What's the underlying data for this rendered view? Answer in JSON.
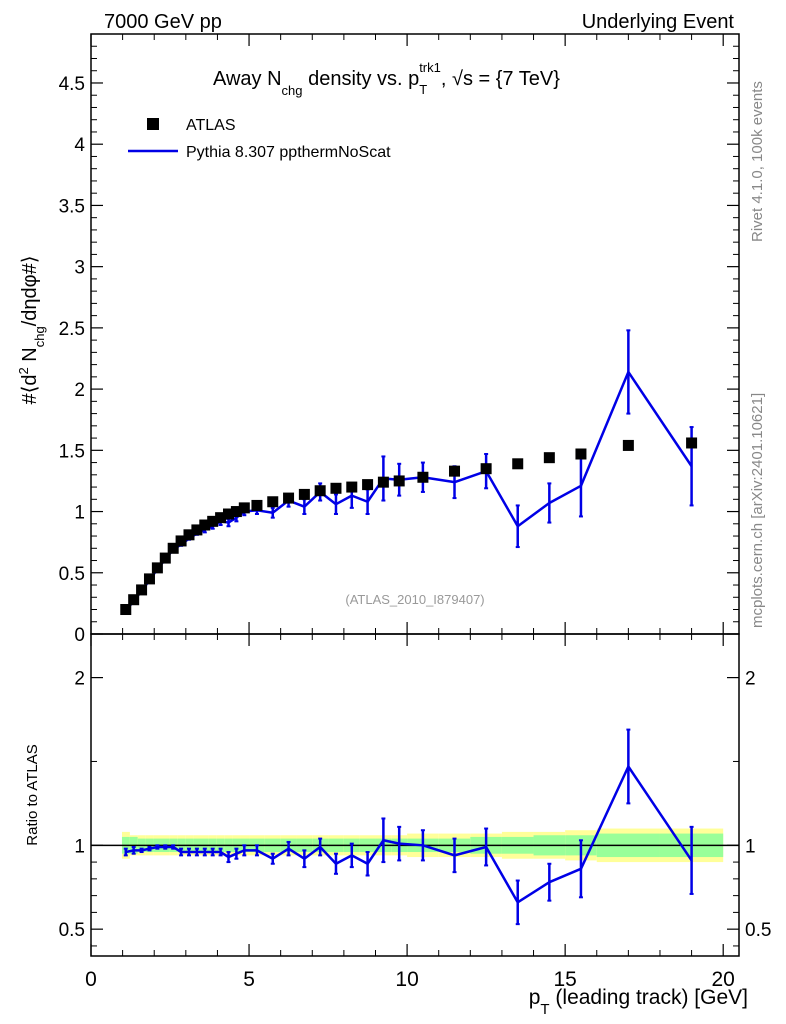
{
  "header": {
    "left": "7000 GeV pp",
    "right": "Underlying Event"
  },
  "side_labels": {
    "top": "Rivet 4.1.0,  100k events",
    "bottom": "mcplots.cern.ch [arXiv:2401.10621]"
  },
  "watermark": "(ATLAS_2010_I879407)",
  "colors": {
    "data": "#000000",
    "mc": "#0000e6",
    "band_inner": "#99ff99",
    "band_outer": "#ffff99"
  },
  "chart_data": {
    "type": "line",
    "title": "Away N_chg density vs. p_T^trk1, √s = {7 TeV}",
    "title_parts": {
      "a": "Away N",
      "a_sub": "chg",
      "b": " density vs. p",
      "b_sub": "T",
      "b_sup": "trk1",
      "c": ", √s = {7 TeV}"
    },
    "xlabel": "p_T (leading track) [GeV]",
    "xlabel_parts": {
      "main": "p",
      "sub": "T",
      "rest": " (leading track) [GeV]"
    },
    "ylabel": "#⟨d² N_chg/dηdφ#⟩",
    "ylabel_parts": {
      "a": "#⟨d",
      "sup": "2",
      "b": " N",
      "sub": "chg",
      "c": "/dηdφ#⟩"
    },
    "ratio_ylabel": "Ratio to ATLAS",
    "xlim": [
      0,
      20.5
    ],
    "ylim": [
      0,
      4.9
    ],
    "ratio_ylim": [
      0.34,
      2.26
    ],
    "xticks": [
      0,
      5,
      10,
      15,
      20
    ],
    "xtick_labels": [
      "0",
      "5",
      "10",
      "15",
      "20"
    ],
    "yticks": [
      0,
      0.5,
      1,
      1.5,
      2,
      2.5,
      3,
      3.5,
      4,
      4.5
    ],
    "ytick_labels": [
      "0",
      "0.5",
      "1",
      "1.5",
      "2",
      "2.5",
      "3",
      "3.5",
      "4",
      "4.5"
    ],
    "ratio_yticks": [
      0.5,
      1,
      2
    ],
    "ratio_ytick_labels": [
      "0.5",
      "1",
      "2"
    ],
    "legend": [
      {
        "label": "ATLAS",
        "style": "marker"
      },
      {
        "label": "Pythia 8.307 ppthermNoScat",
        "style": "line"
      }
    ],
    "series": [
      {
        "name": "ATLAS",
        "x": [
          1.1,
          1.35,
          1.6,
          1.85,
          2.1,
          2.35,
          2.6,
          2.85,
          3.1,
          3.35,
          3.6,
          3.85,
          4.1,
          4.35,
          4.6,
          4.85,
          5.25,
          5.75,
          6.25,
          6.75,
          7.25,
          7.75,
          8.25,
          8.75,
          9.25,
          9.75,
          10.5,
          11.5,
          12.5,
          13.5,
          14.5,
          15.5,
          17.0,
          19.0
        ],
        "y": [
          0.2,
          0.28,
          0.36,
          0.45,
          0.54,
          0.62,
          0.7,
          0.76,
          0.81,
          0.85,
          0.89,
          0.92,
          0.95,
          0.98,
          1.0,
          1.03,
          1.05,
          1.08,
          1.11,
          1.14,
          1.17,
          1.19,
          1.2,
          1.22,
          1.24,
          1.25,
          1.28,
          1.33,
          1.35,
          1.39,
          1.44,
          1.47,
          1.54,
          1.56
        ]
      },
      {
        "name": "Pythia 8.307 ppthermNoScat",
        "x": [
          1.1,
          1.35,
          1.6,
          1.85,
          2.1,
          2.35,
          2.6,
          2.85,
          3.1,
          3.35,
          3.6,
          3.85,
          4.1,
          4.35,
          4.6,
          4.85,
          5.25,
          5.75,
          6.25,
          6.75,
          7.25,
          7.75,
          8.25,
          8.75,
          9.25,
          9.75,
          10.5,
          11.5,
          12.5,
          13.5,
          14.5,
          15.5,
          17.0,
          19.0
        ],
        "y": [
          0.19,
          0.27,
          0.35,
          0.44,
          0.53,
          0.61,
          0.69,
          0.73,
          0.78,
          0.82,
          0.85,
          0.88,
          0.92,
          0.91,
          0.95,
          1.0,
          1.01,
          0.99,
          1.09,
          1.04,
          1.16,
          1.06,
          1.13,
          1.08,
          1.27,
          1.26,
          1.28,
          1.24,
          1.33,
          0.88,
          1.07,
          1.21,
          2.14,
          1.37
        ],
        "err": [
          0.01,
          0.01,
          0.01,
          0.01,
          0.01,
          0.01,
          0.01,
          0.01,
          0.01,
          0.01,
          0.02,
          0.02,
          0.03,
          0.03,
          0.03,
          0.03,
          0.03,
          0.04,
          0.05,
          0.06,
          0.07,
          0.08,
          0.1,
          0.1,
          0.18,
          0.13,
          0.12,
          0.13,
          0.14,
          0.17,
          0.16,
          0.25,
          0.34,
          0.32
        ]
      }
    ],
    "ratio": {
      "x": [
        1.1,
        1.35,
        1.6,
        1.85,
        2.1,
        2.35,
        2.6,
        2.85,
        3.1,
        3.35,
        3.6,
        3.85,
        4.1,
        4.35,
        4.6,
        4.85,
        5.25,
        5.75,
        6.25,
        6.75,
        7.25,
        7.75,
        8.25,
        8.75,
        9.25,
        9.75,
        10.5,
        11.5,
        12.5,
        13.5,
        14.5,
        15.5,
        17.0,
        19.0
      ],
      "y": [
        0.96,
        0.97,
        0.97,
        0.98,
        0.99,
        0.99,
        0.99,
        0.96,
        0.96,
        0.96,
        0.96,
        0.96,
        0.96,
        0.93,
        0.95,
        0.97,
        0.97,
        0.92,
        0.98,
        0.92,
        0.99,
        0.89,
        0.94,
        0.89,
        1.03,
        1.01,
        1.0,
        0.94,
        0.99,
        0.66,
        0.78,
        0.86,
        1.47,
        0.91
      ],
      "err": [
        0.02,
        0.02,
        0.01,
        0.01,
        0.01,
        0.01,
        0.01,
        0.02,
        0.02,
        0.02,
        0.02,
        0.02,
        0.02,
        0.03,
        0.03,
        0.03,
        0.03,
        0.03,
        0.04,
        0.05,
        0.05,
        0.06,
        0.07,
        0.07,
        0.13,
        0.1,
        0.09,
        0.1,
        0.11,
        0.13,
        0.11,
        0.17,
        0.22,
        0.2
      ],
      "band_edges": [
        0.98,
        1.23,
        1.48,
        1.73,
        1.98,
        2.23,
        2.48,
        2.73,
        2.98,
        3.23,
        3.48,
        3.73,
        3.98,
        4.23,
        4.48,
        4.73,
        5.0,
        5.5,
        6.0,
        6.5,
        7.0,
        7.5,
        8.0,
        8.5,
        9.0,
        9.5,
        10.0,
        11.0,
        12.0,
        13.0,
        14.0,
        15.0,
        16.0,
        18.0,
        20.0
      ],
      "band_inner": [
        0.05,
        0.05,
        0.04,
        0.04,
        0.04,
        0.04,
        0.04,
        0.04,
        0.04,
        0.04,
        0.04,
        0.04,
        0.04,
        0.04,
        0.04,
        0.04,
        0.04,
        0.04,
        0.04,
        0.04,
        0.04,
        0.04,
        0.04,
        0.04,
        0.04,
        0.04,
        0.04,
        0.04,
        0.05,
        0.05,
        0.06,
        0.06,
        0.07,
        0.07
      ],
      "band_outer": [
        0.08,
        0.06,
        0.06,
        0.06,
        0.06,
        0.06,
        0.06,
        0.06,
        0.06,
        0.06,
        0.06,
        0.06,
        0.06,
        0.06,
        0.06,
        0.06,
        0.06,
        0.06,
        0.06,
        0.06,
        0.06,
        0.06,
        0.06,
        0.06,
        0.06,
        0.06,
        0.07,
        0.07,
        0.07,
        0.08,
        0.08,
        0.09,
        0.1,
        0.1
      ]
    }
  }
}
